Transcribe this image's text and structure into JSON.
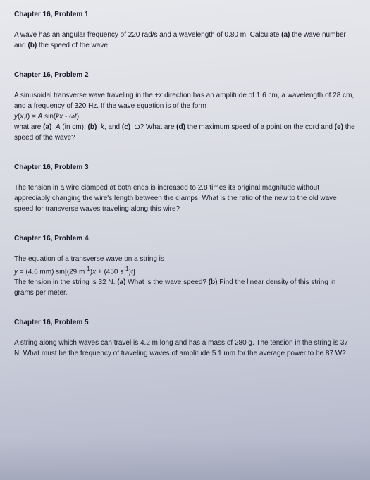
{
  "problems": [
    {
      "title": "Chapter 16, Problem 1",
      "body": "A wave has an angular frequency of 220 rad/s and a wavelength of 0.80 m. Calculate <b>(a)</b> the wave number and <b>(b)</b> the speed of the wave."
    },
    {
      "title": "Chapter 16, Problem 2",
      "body": "A sinusoidal transverse wave traveling in the +<i>x</i> direction has an amplitude of 1.6 cm, a wavelength of 28 cm, and a frequency of 320 Hz. If the wave equation is of the form<br><i>y</i>(<i>x</i>,<i>t</i>) = <i>A</i> sin(<i>kx</i> - ω<i>t</i>),<br>what are <b>(a)</b> &nbsp;<i>A</i> (in cm), <b>(b)</b> &nbsp;<i>k</i>, and <b>(c)</b> &nbsp;ω? What are <b>(d)</b> the maximum speed of a point on the cord and <b>(e)</b> the speed of the wave?"
    },
    {
      "title": "Chapter 16, Problem 3",
      "body": "The tension in a wire clamped at both ends is increased to 2.8 times its original magnitude without appreciably changing the wire's length between the clamps. What is the ratio of the new to the old wave speed for transverse waves traveling along this wire?"
    },
    {
      "title": "Chapter 16, Problem 4",
      "body": "The equation of a transverse wave on a string is<br><i>y</i> = (4.6 mm) sin[(29 m<sup>-1</sup>)<i>x</i> + (450 s<sup>-1</sup>)<i>t</i>]<br>The tension in the string is 32 N. <b>(a)</b> What is the wave speed? <b>(b)</b> Find the linear density of this string in grams per meter."
    },
    {
      "title": "Chapter 16, Problem 5",
      "body": "A string along which waves can travel is 4.2 m long and has a mass of 280 g. The tension in the string is 37 N. What must be the frequency of traveling waves of amplitude 5.1 mm for the average power to be 87 W?"
    }
  ]
}
